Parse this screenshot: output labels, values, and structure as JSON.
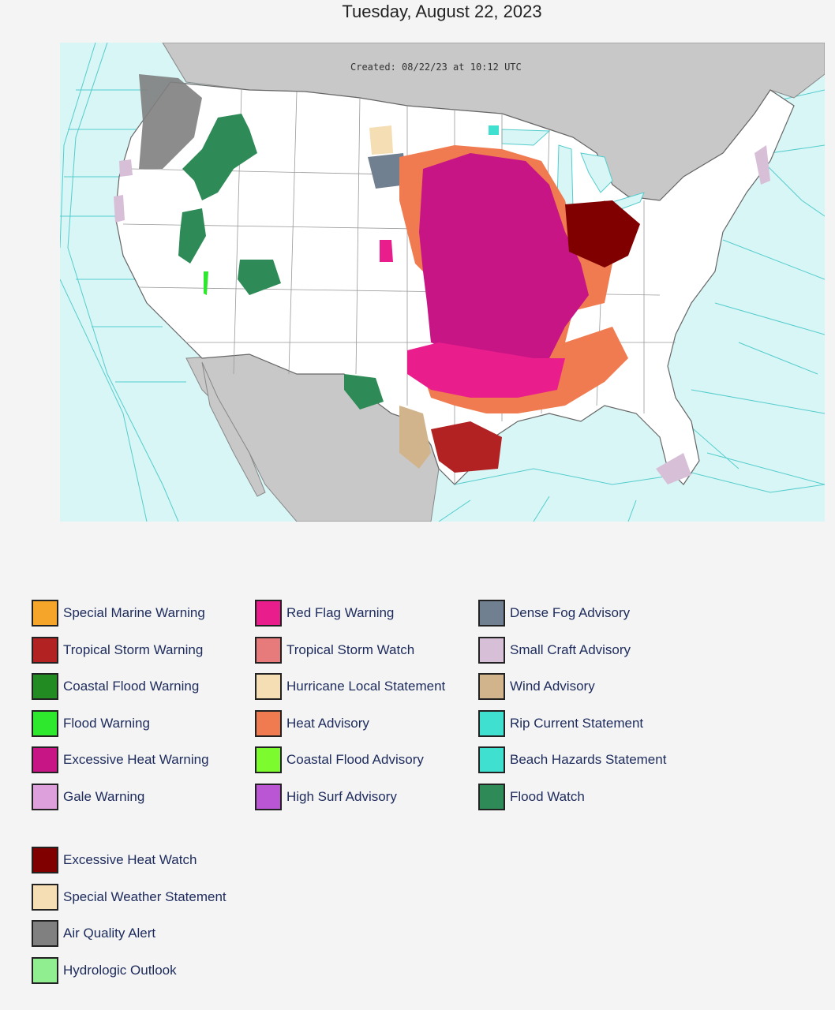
{
  "page": {
    "title": "Tuesday, August 22, 2023"
  },
  "map": {
    "created_label": "Created: 08/22/23 at 10:12 UTC"
  },
  "legend": {
    "columns": [
      [
        {
          "label": "Special Marine Warning",
          "color": "#f4a52a"
        },
        {
          "label": "Tropical Storm Warning",
          "color": "#b22222"
        },
        {
          "label": "Coastal Flood Warning",
          "color": "#228b22"
        },
        {
          "label": "Flood Warning",
          "color": "#2ee82e"
        },
        {
          "label": "Excessive Heat Warning",
          "color": "#c71585"
        },
        {
          "label": "Gale Warning",
          "color": "#dda0dd"
        }
      ],
      [
        {
          "label": "Red Flag Warning",
          "color": "#e91e8c"
        },
        {
          "label": "Tropical Storm Watch",
          "color": "#e77b7b"
        },
        {
          "label": "Hurricane Local Statement",
          "color": "#f5deb3"
        },
        {
          "label": "Heat Advisory",
          "color": "#f07b50"
        },
        {
          "label": "Coastal Flood Advisory",
          "color": "#7cfc2e"
        },
        {
          "label": "High Surf Advisory",
          "color": "#ba55d3"
        }
      ],
      [
        {
          "label": "Dense Fog Advisory",
          "color": "#708090"
        },
        {
          "label": "Small Craft Advisory",
          "color": "#d8bfd8"
        },
        {
          "label": "Wind Advisory",
          "color": "#d2b48c"
        },
        {
          "label": "Rip Current Statement",
          "color": "#40e0d0"
        },
        {
          "label": "Beach Hazards Statement",
          "color": "#40e0d0"
        },
        {
          "label": "Flood Watch",
          "color": "#2e8b57"
        }
      ]
    ],
    "extra": [
      {
        "label": "Excessive Heat Watch",
        "color": "#800000"
      },
      {
        "label": "Special Weather Statement",
        "color": "#f5deb3"
      },
      {
        "label": "Air Quality Alert",
        "color": "#808080"
      },
      {
        "label": "Hydrologic Outlook",
        "color": "#90ee90"
      }
    ]
  },
  "colors": {
    "ocean": "#d8f6f6",
    "land_foreign": "#c8c8c8",
    "land_us": "#ffffff",
    "zone_lines": "#55cccc"
  }
}
